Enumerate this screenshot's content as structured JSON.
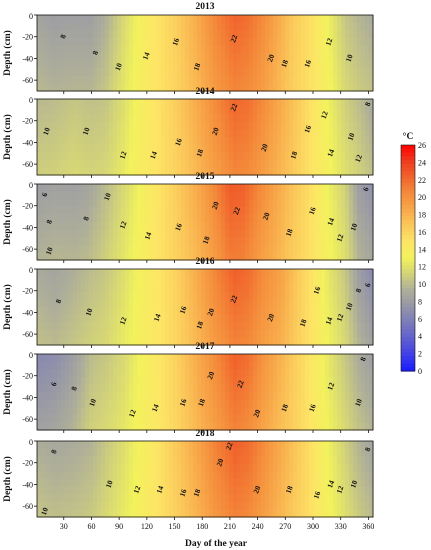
{
  "chart_data": {
    "type": "heatmap",
    "xlabel": "Day of the year",
    "ylabel": "Depth (cm)",
    "xlim": [
      1,
      365
    ],
    "ylim": [
      -70,
      0
    ],
    "x_ticks": [
      30,
      60,
      90,
      120,
      150,
      180,
      210,
      240,
      270,
      300,
      330,
      360
    ],
    "y_ticks": [
      -20,
      -40,
      -60
    ],
    "colorbar": {
      "unit": "°C",
      "min": 0,
      "max": 26,
      "ticks": [
        0,
        2,
        4,
        6,
        8,
        10,
        12,
        14,
        16,
        18,
        20,
        22,
        24,
        26
      ],
      "colors": [
        "#1a1aff",
        "#3f3fe8",
        "#5f5fcf",
        "#7b7bbb",
        "#9595a8",
        "#aeae9a",
        "#d2d27a",
        "#f2f25c",
        "#fde566",
        "#fbc95b",
        "#f8a84a",
        "#f48b3b",
        "#f1642d",
        "#ee3b1d",
        "#ff0000"
      ]
    },
    "panels": [
      {
        "title": "2013",
        "profile": [
          [
            1,
            8.5
          ],
          [
            20,
            8.0
          ],
          [
            40,
            8.2
          ],
          [
            60,
            8.2
          ],
          [
            75,
            9.2
          ],
          [
            95,
            11.5
          ],
          [
            110,
            13.0
          ],
          [
            125,
            14.5
          ],
          [
            150,
            16.2
          ],
          [
            175,
            18.5
          ],
          [
            195,
            20.8
          ],
          [
            215,
            22.3
          ],
          [
            230,
            21.8
          ],
          [
            245,
            20.5
          ],
          [
            260,
            18.8
          ],
          [
            280,
            16.5
          ],
          [
            300,
            15.0
          ],
          [
            315,
            13.0
          ],
          [
            335,
            10.5
          ],
          [
            350,
            9.6
          ],
          [
            365,
            9.0
          ]
        ],
        "isotherms": [
          {
            "text": "8",
            "day": 30,
            "depth": -20
          },
          {
            "text": "8",
            "day": 65,
            "depth": -35
          },
          {
            "text": "10",
            "day": 90,
            "depth": -48
          },
          {
            "text": "14",
            "day": 120,
            "depth": -38
          },
          {
            "text": "16",
            "day": 152,
            "depth": -25
          },
          {
            "text": "18",
            "day": 175,
            "depth": -48
          },
          {
            "text": "22",
            "day": 215,
            "depth": -22
          },
          {
            "text": "20",
            "day": 255,
            "depth": -40
          },
          {
            "text": "18",
            "day": 270,
            "depth": -45
          },
          {
            "text": "16",
            "day": 295,
            "depth": -45
          },
          {
            "text": "12",
            "day": 318,
            "depth": -25
          },
          {
            "text": "10",
            "day": 340,
            "depth": -40
          }
        ]
      },
      {
        "title": "2014",
        "profile": [
          [
            1,
            9.8
          ],
          [
            20,
            10.0
          ],
          [
            40,
            10.5
          ],
          [
            60,
            10.2
          ],
          [
            75,
            10.4
          ],
          [
            95,
            11.8
          ],
          [
            110,
            13.3
          ],
          [
            125,
            14.5
          ],
          [
            150,
            16.3
          ],
          [
            175,
            18.5
          ],
          [
            195,
            20.5
          ],
          [
            215,
            22.2
          ],
          [
            230,
            21.8
          ],
          [
            245,
            20.5
          ],
          [
            260,
            19.0
          ],
          [
            280,
            17.0
          ],
          [
            300,
            14.8
          ],
          [
            315,
            13.0
          ],
          [
            335,
            11.0
          ],
          [
            350,
            10.0
          ],
          [
            365,
            8.8
          ]
        ],
        "isotherms": [
          {
            "text": "10",
            "day": 12,
            "depth": -30
          },
          {
            "text": "10",
            "day": 55,
            "depth": -30
          },
          {
            "text": "12",
            "day": 95,
            "depth": -52
          },
          {
            "text": "14",
            "day": 128,
            "depth": -52
          },
          {
            "text": "16",
            "day": 155,
            "depth": -40
          },
          {
            "text": "18",
            "day": 178,
            "depth": -50
          },
          {
            "text": "20",
            "day": 195,
            "depth": -30
          },
          {
            "text": "22",
            "day": 215,
            "depth": -8
          },
          {
            "text": "20",
            "day": 248,
            "depth": -45
          },
          {
            "text": "18",
            "day": 280,
            "depth": -52
          },
          {
            "text": "16",
            "day": 295,
            "depth": -28
          },
          {
            "text": "12",
            "day": 313,
            "depth": -15
          },
          {
            "text": "14",
            "day": 320,
            "depth": -50
          },
          {
            "text": "10",
            "day": 342,
            "depth": -35
          },
          {
            "text": "12",
            "day": 350,
            "depth": -55
          },
          {
            "text": "8",
            "day": 360,
            "depth": -5
          }
        ]
      },
      {
        "title": "2015",
        "profile": [
          [
            1,
            8.0
          ],
          [
            20,
            8.3
          ],
          [
            40,
            8.2
          ],
          [
            55,
            8.5
          ],
          [
            70,
            9.5
          ],
          [
            95,
            11.5
          ],
          [
            110,
            12.8
          ],
          [
            125,
            14.3
          ],
          [
            150,
            16.3
          ],
          [
            175,
            18.5
          ],
          [
            195,
            20.8
          ],
          [
            210,
            22.8
          ],
          [
            225,
            22.5
          ],
          [
            240,
            20.8
          ],
          [
            260,
            18.8
          ],
          [
            280,
            16.8
          ],
          [
            300,
            15.0
          ],
          [
            315,
            13.0
          ],
          [
            335,
            11.0
          ],
          [
            350,
            8.0
          ],
          [
            365,
            7.0
          ]
        ],
        "isotherms": [
          {
            "text": "6",
            "day": 10,
            "depth": -10
          },
          {
            "text": "8",
            "day": 15,
            "depth": -35
          },
          {
            "text": "10",
            "day": 15,
            "depth": -62
          },
          {
            "text": "8",
            "day": 55,
            "depth": -32
          },
          {
            "text": "10",
            "day": 78,
            "depth": -12
          },
          {
            "text": "12",
            "day": 95,
            "depth": -38
          },
          {
            "text": "14",
            "day": 122,
            "depth": -48
          },
          {
            "text": "16",
            "day": 155,
            "depth": -40
          },
          {
            "text": "18",
            "day": 185,
            "depth": -52
          },
          {
            "text": "20",
            "day": 195,
            "depth": -20
          },
          {
            "text": "22",
            "day": 218,
            "depth": -25
          },
          {
            "text": "20",
            "day": 250,
            "depth": -30
          },
          {
            "text": "18",
            "day": 275,
            "depth": -45
          },
          {
            "text": "16",
            "day": 300,
            "depth": -25
          },
          {
            "text": "14",
            "day": 320,
            "depth": -35
          },
          {
            "text": "12",
            "day": 330,
            "depth": -50
          },
          {
            "text": "10",
            "day": 345,
            "depth": -40
          },
          {
            "text": "6",
            "day": 358,
            "depth": -5
          }
        ]
      },
      {
        "title": "2016",
        "profile": [
          [
            1,
            9.0
          ],
          [
            20,
            8.5
          ],
          [
            40,
            9.2
          ],
          [
            60,
            10.0
          ],
          [
            75,
            10.5
          ],
          [
            95,
            11.8
          ],
          [
            110,
            13.0
          ],
          [
            125,
            14.2
          ],
          [
            150,
            16.0
          ],
          [
            175,
            18.5
          ],
          [
            195,
            20.8
          ],
          [
            215,
            22.5
          ],
          [
            230,
            22.0
          ],
          [
            245,
            20.5
          ],
          [
            265,
            19.0
          ],
          [
            285,
            16.5
          ],
          [
            300,
            14.8
          ],
          [
            315,
            12.5
          ],
          [
            335,
            10.5
          ],
          [
            350,
            8.0
          ],
          [
            365,
            6.5
          ]
        ],
        "isotherms": [
          {
            "text": "8",
            "day": 25,
            "depth": -30
          },
          {
            "text": "10",
            "day": 58,
            "depth": -40
          },
          {
            "text": "12",
            "day": 95,
            "depth": -48
          },
          {
            "text": "14",
            "day": 132,
            "depth": -45
          },
          {
            "text": "16",
            "day": 160,
            "depth": -38
          },
          {
            "text": "18",
            "day": 178,
            "depth": -52
          },
          {
            "text": "20",
            "day": 190,
            "depth": -40
          },
          {
            "text": "22",
            "day": 215,
            "depth": -28
          },
          {
            "text": "20",
            "day": 255,
            "depth": -45
          },
          {
            "text": "18",
            "day": 290,
            "depth": -50
          },
          {
            "text": "16",
            "day": 305,
            "depth": -20
          },
          {
            "text": "14",
            "day": 318,
            "depth": -48
          },
          {
            "text": "12",
            "day": 330,
            "depth": -45
          },
          {
            "text": "10",
            "day": 340,
            "depth": -35
          },
          {
            "text": "8",
            "day": 350,
            "depth": -20
          },
          {
            "text": "6",
            "day": 360,
            "depth": -15
          }
        ]
      },
      {
        "title": "2017",
        "profile": [
          [
            1,
            6.5
          ],
          [
            20,
            6.8
          ],
          [
            40,
            8.0
          ],
          [
            60,
            10.0
          ],
          [
            75,
            10.5
          ],
          [
            95,
            11.5
          ],
          [
            110,
            12.8
          ],
          [
            125,
            14.0
          ],
          [
            150,
            16.0
          ],
          [
            175,
            18.5
          ],
          [
            195,
            20.5
          ],
          [
            215,
            22.5
          ],
          [
            230,
            21.8
          ],
          [
            245,
            20.0
          ],
          [
            265,
            18.0
          ],
          [
            285,
            16.0
          ],
          [
            300,
            14.5
          ],
          [
            315,
            12.5
          ],
          [
            335,
            10.5
          ],
          [
            350,
            9.0
          ],
          [
            365,
            8.0
          ]
        ],
        "isotherms": [
          {
            "text": "6",
            "day": 20,
            "depth": -28
          },
          {
            "text": "8",
            "day": 42,
            "depth": -32
          },
          {
            "text": "10",
            "day": 62,
            "depth": -45
          },
          {
            "text": "12",
            "day": 105,
            "depth": -55
          },
          {
            "text": "14",
            "day": 130,
            "depth": -50
          },
          {
            "text": "16",
            "day": 160,
            "depth": -45
          },
          {
            "text": "18",
            "day": 180,
            "depth": -45
          },
          {
            "text": "20",
            "day": 190,
            "depth": -20
          },
          {
            "text": "22",
            "day": 222,
            "depth": -28
          },
          {
            "text": "20",
            "day": 240,
            "depth": -55
          },
          {
            "text": "18",
            "day": 270,
            "depth": -50
          },
          {
            "text": "16",
            "day": 300,
            "depth": -50
          },
          {
            "text": "12",
            "day": 320,
            "depth": -30
          },
          {
            "text": "10",
            "day": 350,
            "depth": -45
          },
          {
            "text": "8",
            "day": 355,
            "depth": -5
          }
        ]
      },
      {
        "title": "2018",
        "profile": [
          [
            1,
            9.2
          ],
          [
            20,
            8.8
          ],
          [
            40,
            9.0
          ],
          [
            60,
            9.5
          ],
          [
            75,
            10.5
          ],
          [
            95,
            11.8
          ],
          [
            110,
            13.0
          ],
          [
            125,
            14.3
          ],
          [
            150,
            16.5
          ],
          [
            175,
            18.8
          ],
          [
            195,
            21.0
          ],
          [
            215,
            22.5
          ],
          [
            230,
            22.0
          ],
          [
            245,
            20.5
          ],
          [
            265,
            18.5
          ],
          [
            285,
            16.5
          ],
          [
            300,
            15.0
          ],
          [
            315,
            13.0
          ],
          [
            335,
            11.0
          ],
          [
            350,
            9.5
          ],
          [
            365,
            8.5
          ]
        ],
        "isotherms": [
          {
            "text": "8",
            "day": 20,
            "depth": -10
          },
          {
            "text": "10",
            "day": 10,
            "depth": -65
          },
          {
            "text": "10",
            "day": 80,
            "depth": -40
          },
          {
            "text": "12",
            "day": 110,
            "depth": -45
          },
          {
            "text": "14",
            "day": 135,
            "depth": -45
          },
          {
            "text": "16",
            "day": 160,
            "depth": -48
          },
          {
            "text": "18",
            "day": 175,
            "depth": -48
          },
          {
            "text": "20",
            "day": 200,
            "depth": -20
          },
          {
            "text": "22",
            "day": 210,
            "depth": -5
          },
          {
            "text": "20",
            "day": 240,
            "depth": -45
          },
          {
            "text": "18",
            "day": 275,
            "depth": -45
          },
          {
            "text": "16",
            "day": 305,
            "depth": -50
          },
          {
            "text": "14",
            "day": 320,
            "depth": -40
          },
          {
            "text": "12",
            "day": 330,
            "depth": -45
          },
          {
            "text": "10",
            "day": 345,
            "depth": -40
          },
          {
            "text": "8",
            "day": 360,
            "depth": -8
          }
        ]
      }
    ]
  }
}
